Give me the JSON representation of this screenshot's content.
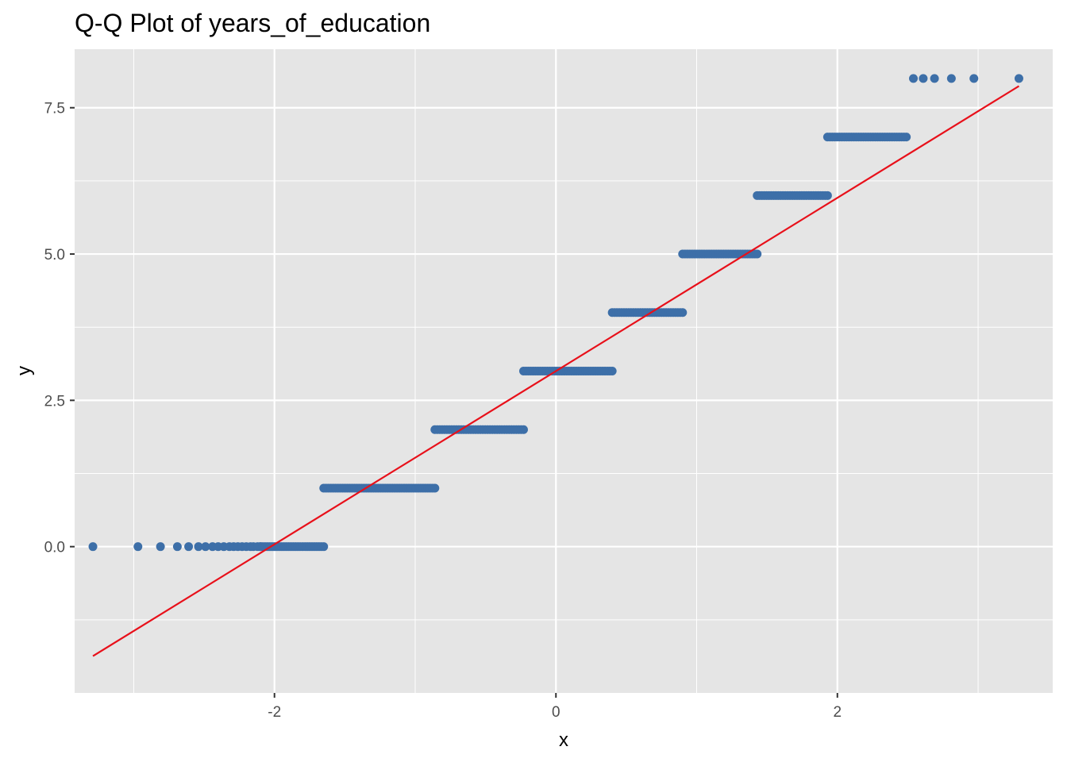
{
  "chart_data": {
    "type": "scatter",
    "title": "Q-Q Plot of years_of_education",
    "xlabel": "x",
    "ylabel": "y",
    "xlim": [
      -3.42,
      3.53
    ],
    "ylim": [
      -2.5,
      8.5
    ],
    "x_ticks": [
      -2,
      0,
      2
    ],
    "x_tick_labels": [
      "-2",
      "0",
      "2"
    ],
    "y_ticks": [
      0,
      2.5,
      5,
      7.5
    ],
    "y_tick_labels": [
      "0.0",
      "2.5",
      "5.0",
      "7.5"
    ],
    "grid": true,
    "legend": "none",
    "colors": {
      "panel": "#e5e5e5",
      "grid": "#ffffff",
      "points": "#3d6fa8",
      "reference_line": "#e8101a"
    },
    "points": [
      {
        "x": -3.29,
        "y": 0
      },
      {
        "x": -2.97,
        "y": 0
      },
      {
        "x": -2.81,
        "y": 0
      },
      {
        "x": -2.69,
        "y": 0
      },
      {
        "x": -2.61,
        "y": 0
      },
      {
        "x": -2.54,
        "y": 0
      },
      {
        "x": -2.49,
        "y": 0
      },
      {
        "x": -2.44,
        "y": 0
      },
      {
        "x": -2.4,
        "y": 0
      },
      {
        "x": -2.36,
        "y": 0
      },
      {
        "x": -2.32,
        "y": 0
      },
      {
        "x": -2.29,
        "y": 0
      },
      {
        "x": -2.26,
        "y": 0
      },
      {
        "x": -2.23,
        "y": 0
      },
      {
        "x": -2.2,
        "y": 0
      },
      {
        "x": -2.17,
        "y": 0
      },
      {
        "x": -2.15,
        "y": 0
      },
      {
        "x": -2.12,
        "y": 0
      },
      {
        "x": -2.1,
        "y": 0
      },
      {
        "x": 2.54,
        "y": 8
      },
      {
        "x": 2.61,
        "y": 8
      },
      {
        "x": 2.69,
        "y": 8
      },
      {
        "x": 2.81,
        "y": 8
      },
      {
        "x": 2.97,
        "y": 8
      },
      {
        "x": 3.29,
        "y": 8
      }
    ],
    "dense_runs": [
      {
        "y": 0,
        "x_start": -2.1,
        "x_end": -1.65
      },
      {
        "y": 1,
        "x_start": -1.65,
        "x_end": -0.86
      },
      {
        "y": 2,
        "x_start": -0.86,
        "x_end": -0.23
      },
      {
        "y": 3,
        "x_start": -0.23,
        "x_end": 0.4
      },
      {
        "y": 4,
        "x_start": 0.4,
        "x_end": 0.9
      },
      {
        "y": 5,
        "x_start": 0.9,
        "x_end": 1.43
      },
      {
        "y": 6,
        "x_start": 1.43,
        "x_end": 1.93
      },
      {
        "y": 7,
        "x_start": 1.93,
        "x_end": 2.49
      }
    ],
    "reference_line": {
      "x": [
        -3.29,
        3.29
      ],
      "y": [
        -1.87,
        7.87
      ]
    }
  }
}
